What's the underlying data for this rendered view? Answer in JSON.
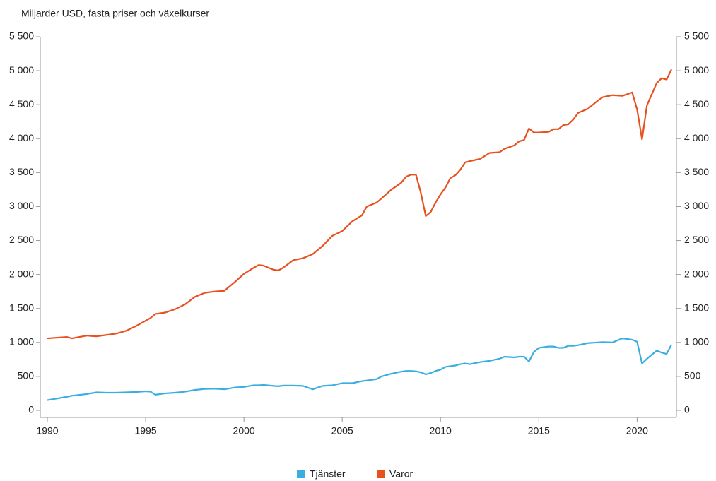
{
  "chart_data": {
    "type": "line",
    "title": "Miljarder USD, fasta priser och växelkurser",
    "x": [
      1990,
      1991,
      1991.25,
      1992,
      1992.5,
      1993,
      1993.5,
      1994,
      1994.5,
      1995,
      1995.25,
      1995.5,
      1996,
      1996.5,
      1997,
      1997.5,
      1998,
      1998.5,
      1999,
      1999.5,
      2000,
      2000.5,
      2000.75,
      2001,
      2001.5,
      2001.75,
      2002,
      2002.5,
      2003,
      2003.5,
      2004,
      2004.5,
      2005,
      2005.5,
      2006,
      2006.25,
      2006.75,
      2007,
      2007.5,
      2008,
      2008.25,
      2008.5,
      2008.75,
      2009,
      2009.25,
      2009.5,
      2009.75,
      2010,
      2010.25,
      2010.5,
      2010.75,
      2011,
      2011.25,
      2011.5,
      2012,
      2012.5,
      2013,
      2013.25,
      2013.75,
      2014,
      2014.25,
      2014.5,
      2014.75,
      2015,
      2015.5,
      2015.75,
      2016,
      2016.25,
      2016.5,
      2016.75,
      2017,
      2017.5,
      2018,
      2018.25,
      2018.75,
      2019.25,
      2019.75,
      2020,
      2020.25,
      2020.5,
      2021,
      2021.25,
      2021.5,
      2021.75
    ],
    "series": [
      {
        "name": "Tjänster",
        "color": "#3aaee0",
        "values": [
          150,
          200,
          215,
          240,
          265,
          260,
          260,
          265,
          270,
          280,
          275,
          230,
          250,
          260,
          275,
          300,
          315,
          320,
          310,
          335,
          345,
          370,
          370,
          375,
          360,
          355,
          365,
          365,
          360,
          310,
          360,
          370,
          400,
          400,
          430,
          440,
          460,
          500,
          540,
          570,
          580,
          580,
          575,
          560,
          530,
          550,
          580,
          600,
          640,
          650,
          660,
          680,
          690,
          680,
          710,
          730,
          760,
          790,
          780,
          790,
          790,
          720,
          860,
          920,
          940,
          940,
          920,
          920,
          950,
          950,
          960,
          990,
          1000,
          1005,
          1000,
          1060,
          1040,
          1010,
          690,
          760,
          880,
          850,
          830,
          970
        ]
      },
      {
        "name": "Varor",
        "color": "#e8501e",
        "values": [
          1060,
          1080,
          1060,
          1100,
          1090,
          1110,
          1130,
          1170,
          1240,
          1320,
          1360,
          1420,
          1440,
          1490,
          1560,
          1670,
          1730,
          1750,
          1760,
          1880,
          2010,
          2100,
          2140,
          2130,
          2070,
          2060,
          2100,
          2210,
          2240,
          2300,
          2420,
          2570,
          2640,
          2780,
          2870,
          3000,
          3060,
          3120,
          3250,
          3350,
          3440,
          3470,
          3470,
          3200,
          2860,
          2920,
          3060,
          3180,
          3280,
          3420,
          3460,
          3540,
          3650,
          3670,
          3700,
          3790,
          3800,
          3850,
          3900,
          3960,
          3980,
          4150,
          4090,
          4090,
          4100,
          4140,
          4140,
          4200,
          4210,
          4280,
          4380,
          4440,
          4560,
          4610,
          4640,
          4630,
          4680,
          4430,
          3990,
          4490,
          4820,
          4890,
          4870,
          5020
        ]
      }
    ],
    "xlim": [
      1990,
      2022
    ],
    "xticks": [
      1990,
      1995,
      2000,
      2005,
      2010,
      2015,
      2020
    ],
    "ylim": [
      0,
      5500
    ],
    "yticks": [
      0,
      500,
      {
        "value": 1000,
        "label": "1 000"
      },
      {
        "value": 1500,
        "label": "1 500"
      },
      {
        "value": 2000,
        "label": "2 000"
      },
      {
        "value": 2500,
        "label": "2 500"
      },
      {
        "value": 3000,
        "label": "3 000"
      },
      {
        "value": 3500,
        "label": "3 500"
      },
      {
        "value": 4000,
        "label": "4 000"
      },
      {
        "value": 4500,
        "label": "4 500"
      },
      {
        "value": 5000,
        "label": "5 000"
      },
      {
        "value": 5500,
        "label": "5 500"
      }
    ],
    "y2lim": [
      0,
      5500
    ],
    "y2ticks": [
      0,
      500,
      {
        "value": 1000,
        "label": "1 000"
      },
      {
        "value": 1500,
        "label": "1 500"
      },
      {
        "value": 2000,
        "label": "2 000"
      },
      {
        "value": 2500,
        "label": "2 500"
      },
      {
        "value": 3000,
        "label": "3 000"
      },
      {
        "value": 3500,
        "label": "3 500"
      },
      {
        "value": 4000,
        "label": "4 000"
      },
      {
        "value": 4500,
        "label": "4 500"
      },
      {
        "value": 5000,
        "label": "5 000"
      },
      {
        "value": 5500,
        "label": "5 500"
      }
    ],
    "legend": "bottom",
    "grid": false
  }
}
